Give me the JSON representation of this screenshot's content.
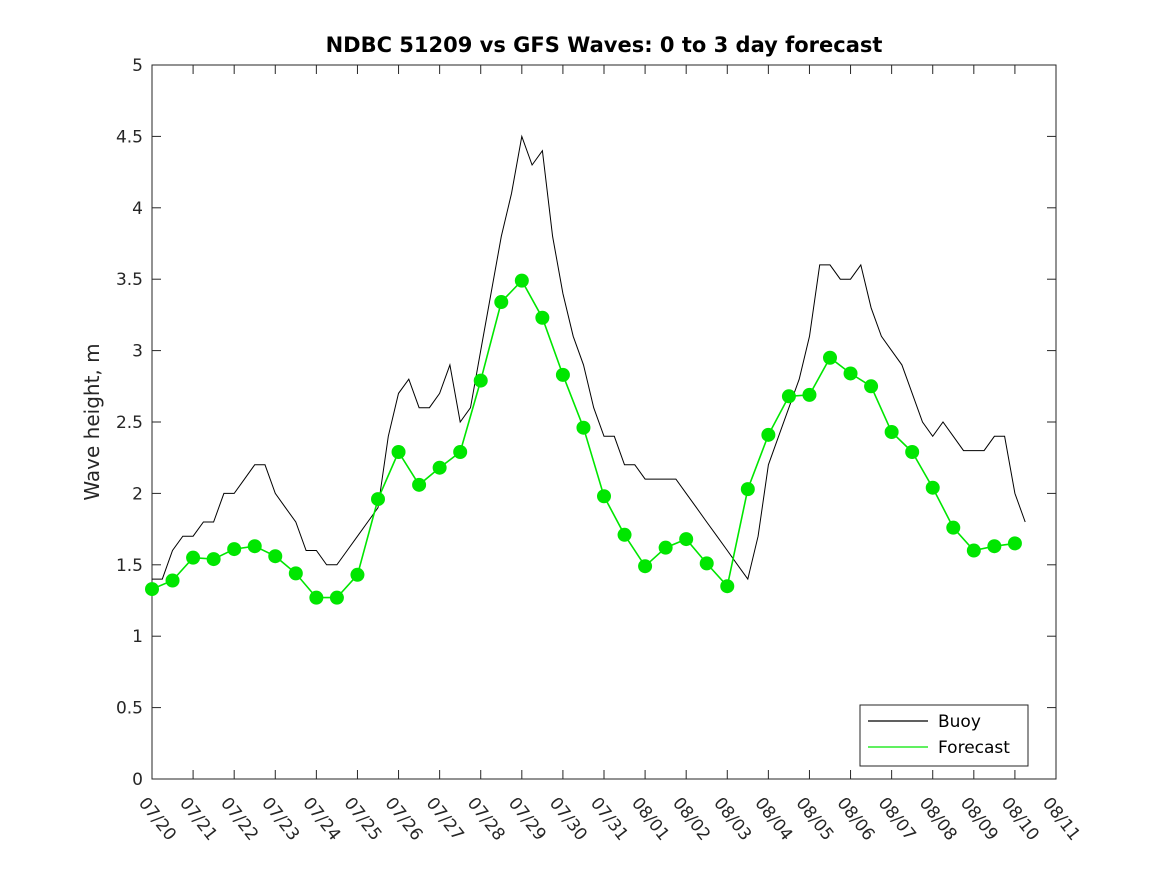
{
  "chart_data": {
    "type": "line",
    "title": "NDBC 51209 vs GFS Waves: 0 to 3 day forecast",
    "xlabel": "",
    "ylabel": "Wave height, m",
    "xlim": [
      "07/20",
      "08/11"
    ],
    "ylim": [
      0,
      5
    ],
    "x_ticks": [
      "07/20",
      "07/21",
      "07/22",
      "07/23",
      "07/24",
      "07/25",
      "07/26",
      "07/27",
      "07/28",
      "07/29",
      "07/30",
      "07/31",
      "08/01",
      "08/02",
      "08/03",
      "08/04",
      "08/05",
      "08/06",
      "08/07",
      "08/08",
      "08/09",
      "08/10",
      "08/11"
    ],
    "y_ticks": [
      "0",
      "0.5",
      "1",
      "1.5",
      "2",
      "2.5",
      "3",
      "3.5",
      "4",
      "4.5",
      "5"
    ],
    "grid": false,
    "legend_position": "bottom-right",
    "colors": {
      "buoy": "#000000",
      "forecast": "#00e600"
    },
    "series": [
      {
        "name": "Buoy",
        "x": [
          "07/20 00:00",
          "07/20 06:00",
          "07/20 12:00",
          "07/20 18:00",
          "07/21 00:00",
          "07/21 06:00",
          "07/21 12:00",
          "07/21 18:00",
          "07/22 00:00",
          "07/22 06:00",
          "07/22 12:00",
          "07/22 18:00",
          "07/23 00:00",
          "07/23 06:00",
          "07/23 12:00",
          "07/23 18:00",
          "07/24 00:00",
          "07/24 06:00",
          "07/24 12:00",
          "07/24 18:00",
          "07/25 00:00",
          "07/25 06:00",
          "07/25 12:00",
          "07/25 18:00",
          "07/26 00:00",
          "07/26 06:00",
          "07/26 12:00",
          "07/26 18:00",
          "07/27 00:00",
          "07/27 06:00",
          "07/27 12:00",
          "07/27 18:00",
          "07/28 00:00",
          "07/28 06:00",
          "07/28 12:00",
          "07/28 18:00",
          "07/29 00:00",
          "07/29 06:00",
          "07/29 12:00",
          "07/29 18:00",
          "07/30 00:00",
          "07/30 06:00",
          "07/30 12:00",
          "07/30 18:00",
          "07/31 00:00",
          "07/31 06:00",
          "07/31 12:00",
          "07/31 18:00",
          "08/01 00:00",
          "08/01 06:00",
          "08/01 12:00",
          "08/01 18:00",
          "08/02 00:00",
          "08/02 06:00",
          "08/02 12:00",
          "08/02 18:00",
          "08/03 00:00",
          "08/03 06:00",
          "08/03 12:00",
          "08/03 18:00",
          "08/04 00:00",
          "08/04 06:00",
          "08/04 12:00",
          "08/04 18:00",
          "08/05 00:00",
          "08/05 06:00",
          "08/05 12:00",
          "08/05 18:00",
          "08/06 00:00",
          "08/06 06:00",
          "08/06 12:00",
          "08/06 18:00",
          "08/07 00:00",
          "08/07 06:00",
          "08/07 12:00",
          "08/07 18:00",
          "08/08 00:00",
          "08/08 06:00",
          "08/08 12:00",
          "08/08 18:00",
          "08/09 00:00",
          "08/09 06:00",
          "08/09 12:00",
          "08/09 18:00",
          "08/10 00:00",
          "08/10 06:00"
        ],
        "y": [
          1.4,
          1.4,
          1.6,
          1.7,
          1.7,
          1.8,
          1.8,
          2.0,
          2.0,
          2.1,
          2.2,
          2.2,
          2.0,
          1.9,
          1.8,
          1.6,
          1.6,
          1.5,
          1.5,
          1.6,
          1.7,
          1.8,
          1.9,
          2.4,
          2.7,
          2.8,
          2.6,
          2.6,
          2.7,
          2.9,
          2.5,
          2.6,
          3.0,
          3.4,
          3.8,
          4.1,
          4.5,
          4.3,
          4.4,
          3.8,
          3.4,
          3.1,
          2.9,
          2.6,
          2.4,
          2.4,
          2.2,
          2.2,
          2.1,
          2.1,
          2.1,
          2.1,
          2.0,
          1.9,
          1.8,
          1.7,
          1.6,
          1.5,
          1.4,
          1.7,
          2.2,
          2.4,
          2.6,
          2.8,
          3.1,
          3.6,
          3.6,
          3.5,
          3.5,
          3.6,
          3.3,
          3.1,
          3.0,
          2.9,
          2.7,
          2.5,
          2.4,
          2.5,
          2.4,
          2.3,
          2.3,
          2.3,
          2.4,
          2.4,
          2.0,
          1.8
        ]
      },
      {
        "name": "Forecast",
        "x": [
          "07/20 00:00",
          "07/20 12:00",
          "07/21 00:00",
          "07/21 12:00",
          "07/22 00:00",
          "07/22 12:00",
          "07/23 00:00",
          "07/23 12:00",
          "07/24 00:00",
          "07/24 12:00",
          "07/25 00:00",
          "07/25 12:00",
          "07/26 00:00",
          "07/26 12:00",
          "07/27 00:00",
          "07/27 12:00",
          "07/28 00:00",
          "07/28 12:00",
          "07/29 00:00",
          "07/29 12:00",
          "07/30 00:00",
          "07/30 12:00",
          "07/31 00:00",
          "07/31 12:00",
          "08/01 00:00",
          "08/01 12:00",
          "08/02 00:00",
          "08/02 12:00",
          "08/03 00:00",
          "08/03 12:00",
          "08/04 00:00",
          "08/04 12:00",
          "08/05 00:00",
          "08/05 12:00",
          "08/06 00:00",
          "08/06 12:00",
          "08/07 00:00",
          "08/07 12:00",
          "08/08 00:00",
          "08/08 12:00",
          "08/09 00:00",
          "08/09 12:00",
          "08/10 00:00"
        ],
        "y": [
          1.33,
          1.39,
          1.55,
          1.54,
          1.61,
          1.63,
          1.56,
          1.44,
          1.27,
          1.27,
          1.43,
          1.96,
          2.29,
          2.06,
          2.18,
          2.29,
          2.79,
          3.34,
          3.49,
          3.23,
          2.83,
          2.46,
          1.98,
          1.71,
          1.49,
          1.62,
          1.68,
          1.51,
          1.35,
          2.03,
          2.41,
          2.68,
          2.69,
          2.95,
          2.84,
          2.75,
          2.43,
          2.29,
          2.04,
          1.76,
          1.6,
          1.63,
          1.65
        ]
      }
    ]
  }
}
